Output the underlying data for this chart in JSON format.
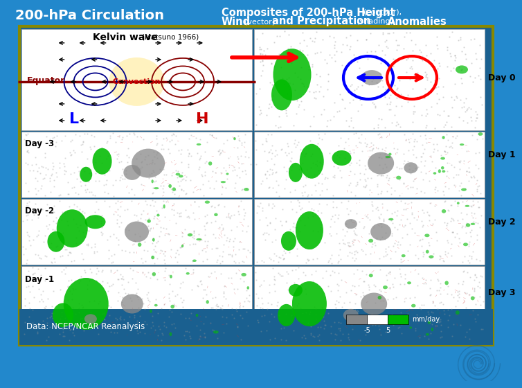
{
  "title_left": "200-hPa Circulation",
  "title_right_line1_bold": "Composites of 200-hPa Height",
  "title_right_line1_small": "(contour),",
  "title_right_line2_bold1": "Wind",
  "title_right_line2_small1": "(vector)",
  "title_right_line2_bold2": "and Precipitation",
  "title_right_line2_small2": "(shading)",
  "title_right_line2_bold3": "Anomalies",
  "bg_color": "#2288cc",
  "panel_bg": "#1a6090",
  "border_color": "#888800",
  "kelvin_title": "Kelvin wave",
  "kelvin_subtitle": "(Matsuno 1966)",
  "equator_label": "Equator",
  "convection_label": "Convection",
  "L_label": "L",
  "H_label": "H",
  "day_labels_left": [
    "Day -3",
    "Day -2",
    "Day -1"
  ],
  "day_labels_right": [
    "Day 0",
    "Day 1",
    "Day 2",
    "Day 3"
  ],
  "data_source": "Data: NCEP/NCAR Reanalysis",
  "colorbar_labels": [
    "-5",
    "5  mm/day"
  ],
  "gray_color": "#888888",
  "green_color": "#00bb00"
}
